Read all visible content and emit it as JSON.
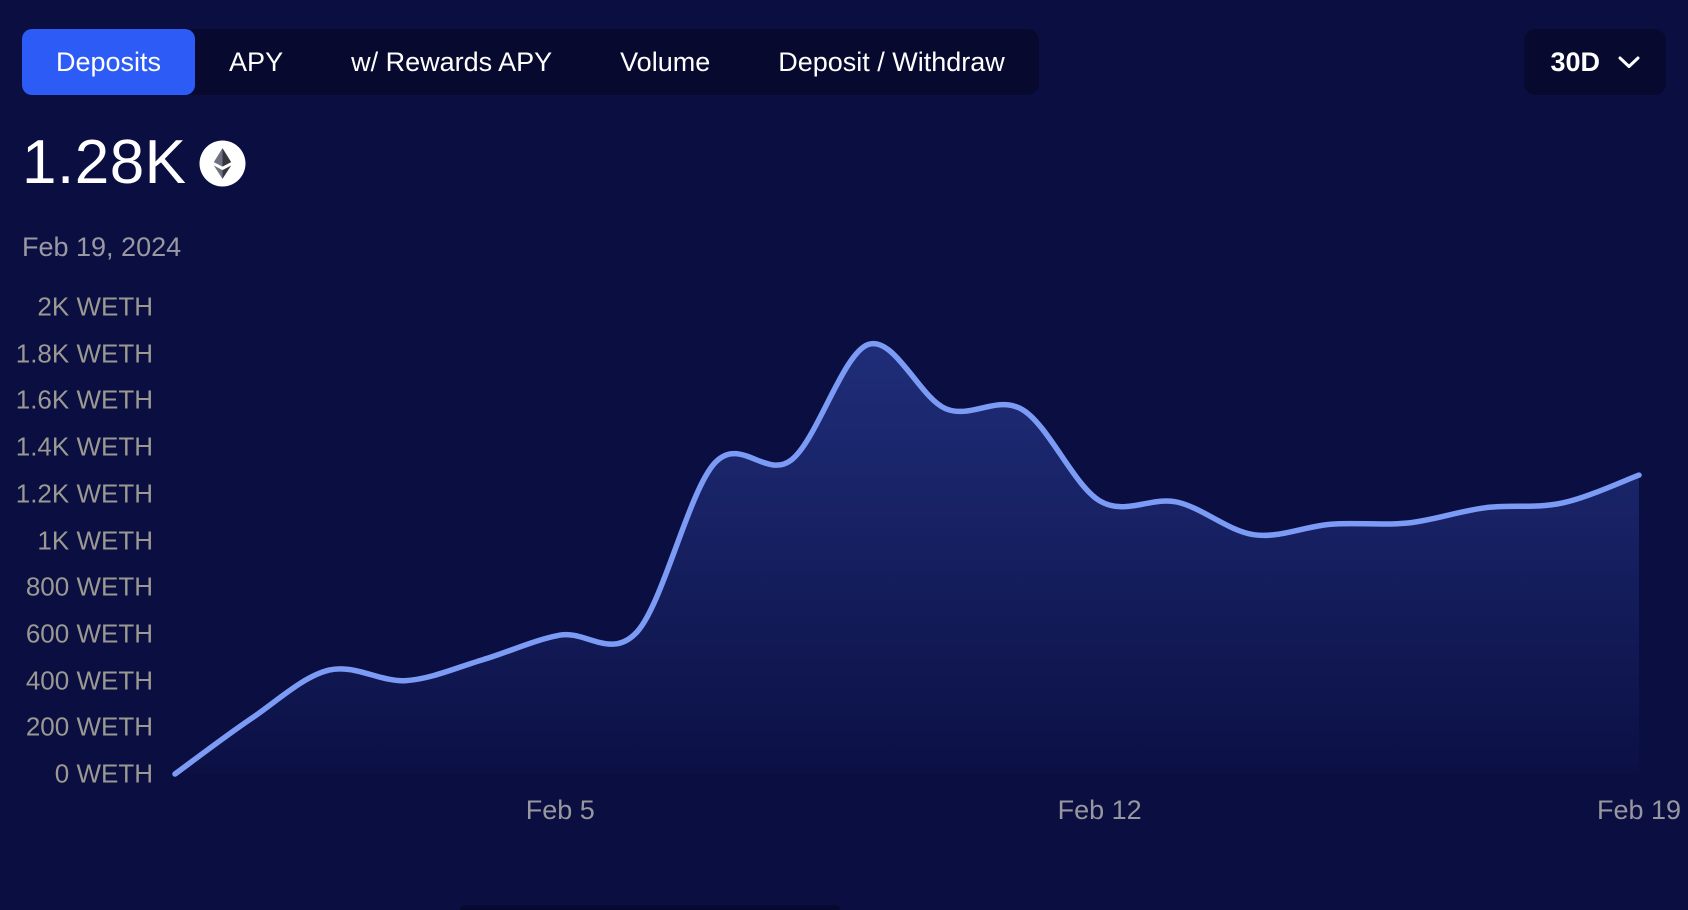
{
  "tabs": {
    "items": [
      {
        "label": "Deposits",
        "active": true
      },
      {
        "label": "APY",
        "active": false
      },
      {
        "label": "w/ Rewards APY",
        "active": false
      },
      {
        "label": "Volume",
        "active": false
      },
      {
        "label": "Deposit / Withdraw",
        "active": false
      }
    ]
  },
  "range_selector": {
    "value": "30D"
  },
  "hero": {
    "value": "1.28K",
    "asset_icon": "ethereum-icon",
    "date": "Feb 19, 2024"
  },
  "chart_data": {
    "type": "area",
    "unit": "WETH",
    "x": [
      "Jan 31",
      "Feb 1",
      "Feb 2",
      "Feb 3",
      "Feb 4",
      "Feb 5",
      "Feb 6",
      "Feb 7",
      "Feb 8",
      "Feb 9",
      "Feb 10",
      "Feb 11",
      "Feb 12",
      "Feb 13",
      "Feb 14",
      "Feb 15",
      "Feb 16",
      "Feb 17",
      "Feb 18",
      "Feb 19"
    ],
    "values": [
      0,
      240,
      445,
      400,
      490,
      595,
      610,
      1330,
      1345,
      1840,
      1565,
      1560,
      1170,
      1165,
      1025,
      1070,
      1075,
      1140,
      1160,
      1280
    ],
    "ylim": [
      0,
      2000
    ],
    "y_ticks": [
      {
        "value": 2000,
        "label": "2K WETH"
      },
      {
        "value": 1800,
        "label": "1.8K WETH"
      },
      {
        "value": 1600,
        "label": "1.6K WETH"
      },
      {
        "value": 1400,
        "label": "1.4K WETH"
      },
      {
        "value": 1200,
        "label": "1.2K WETH"
      },
      {
        "value": 1000,
        "label": "1K WETH"
      },
      {
        "value": 800,
        "label": "800 WETH"
      },
      {
        "value": 600,
        "label": "600 WETH"
      },
      {
        "value": 400,
        "label": "400 WETH"
      },
      {
        "value": 200,
        "label": "200 WETH"
      },
      {
        "value": 0,
        "label": "0 WETH"
      }
    ],
    "x_ticks": [
      {
        "index": 5,
        "label": "Feb 5"
      },
      {
        "index": 12,
        "label": "Feb 12"
      },
      {
        "index": 19,
        "label": "Feb 19"
      }
    ],
    "grid": false,
    "legend": false,
    "line_color": "#7c9bf5",
    "fill_color": "#4d70f0"
  },
  "colors": {
    "background": "#0a0e41",
    "panel": "#070a2e",
    "accent": "#2c5bf6",
    "axis_text": "#9b9992",
    "hero_text": "#ffffff"
  }
}
